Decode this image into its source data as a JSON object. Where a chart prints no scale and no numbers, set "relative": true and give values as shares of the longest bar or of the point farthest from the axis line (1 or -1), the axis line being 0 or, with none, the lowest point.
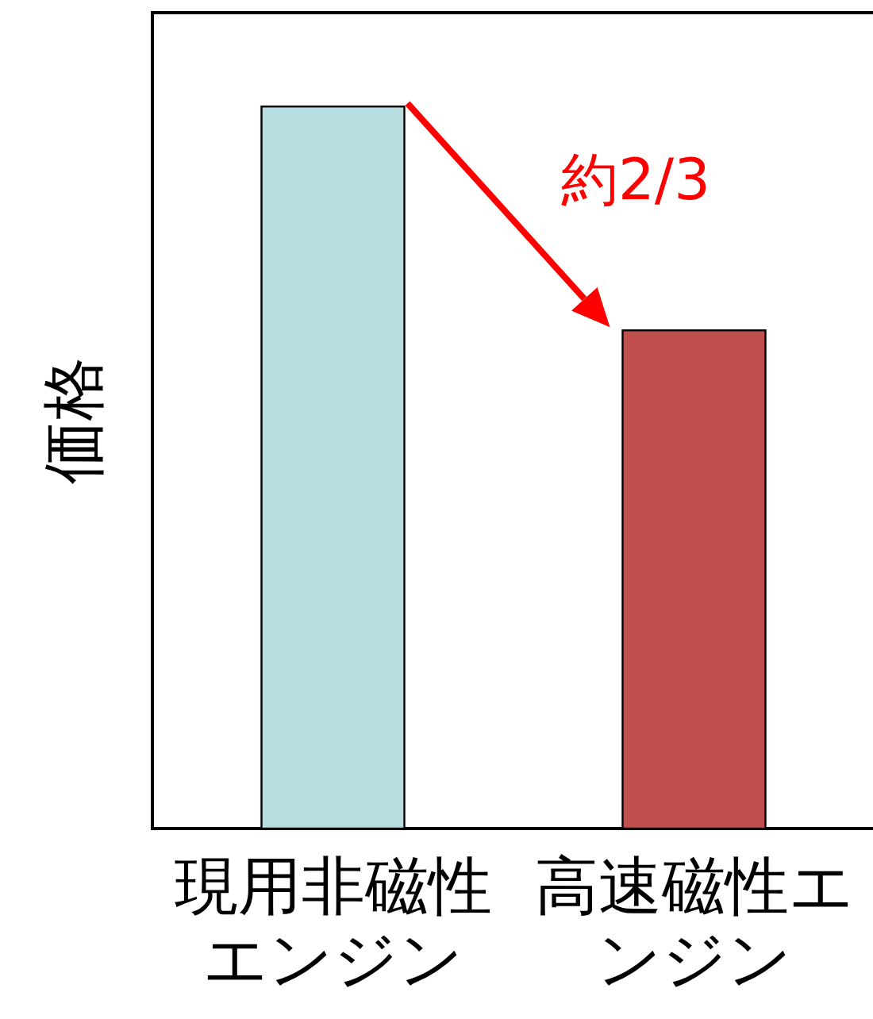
{
  "chart_data": {
    "type": "bar",
    "relative": true,
    "ylabel": "価格",
    "categories": [
      "現用非磁性エンジン",
      "高速磁性エンジン"
    ],
    "values": [
      1,
      0.69
    ],
    "colors": [
      "#b7dde0",
      "#c0504d"
    ],
    "annotations": [
      "約2/3"
    ]
  }
}
